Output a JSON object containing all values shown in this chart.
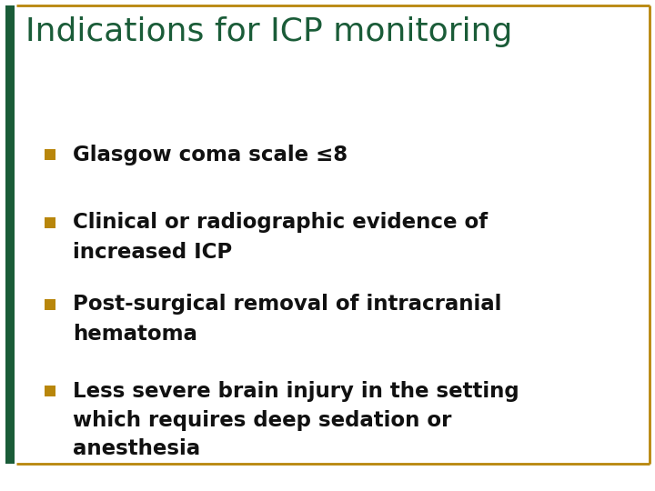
{
  "title": "Indications for ICP monitoring",
  "title_color": "#1a5c38",
  "title_fontsize": 26,
  "bullet_color": "#b8860b",
  "text_color": "#111111",
  "background_color": "#ffffff",
  "border_color": "#b8860b",
  "left_bar_color": "#1a5c38",
  "bullet_items": [
    [
      "Glasgow coma scale ≤8",
      null,
      null
    ],
    [
      "Clinical or radiographic evidence of",
      "increased ICP",
      null
    ],
    [
      "Post-surgical removal of intracranial",
      "hematoma",
      null
    ],
    [
      "Less severe brain injury in the setting",
      "which requires deep sedation or",
      "anesthesia"
    ]
  ],
  "text_fontsize": 16.5
}
